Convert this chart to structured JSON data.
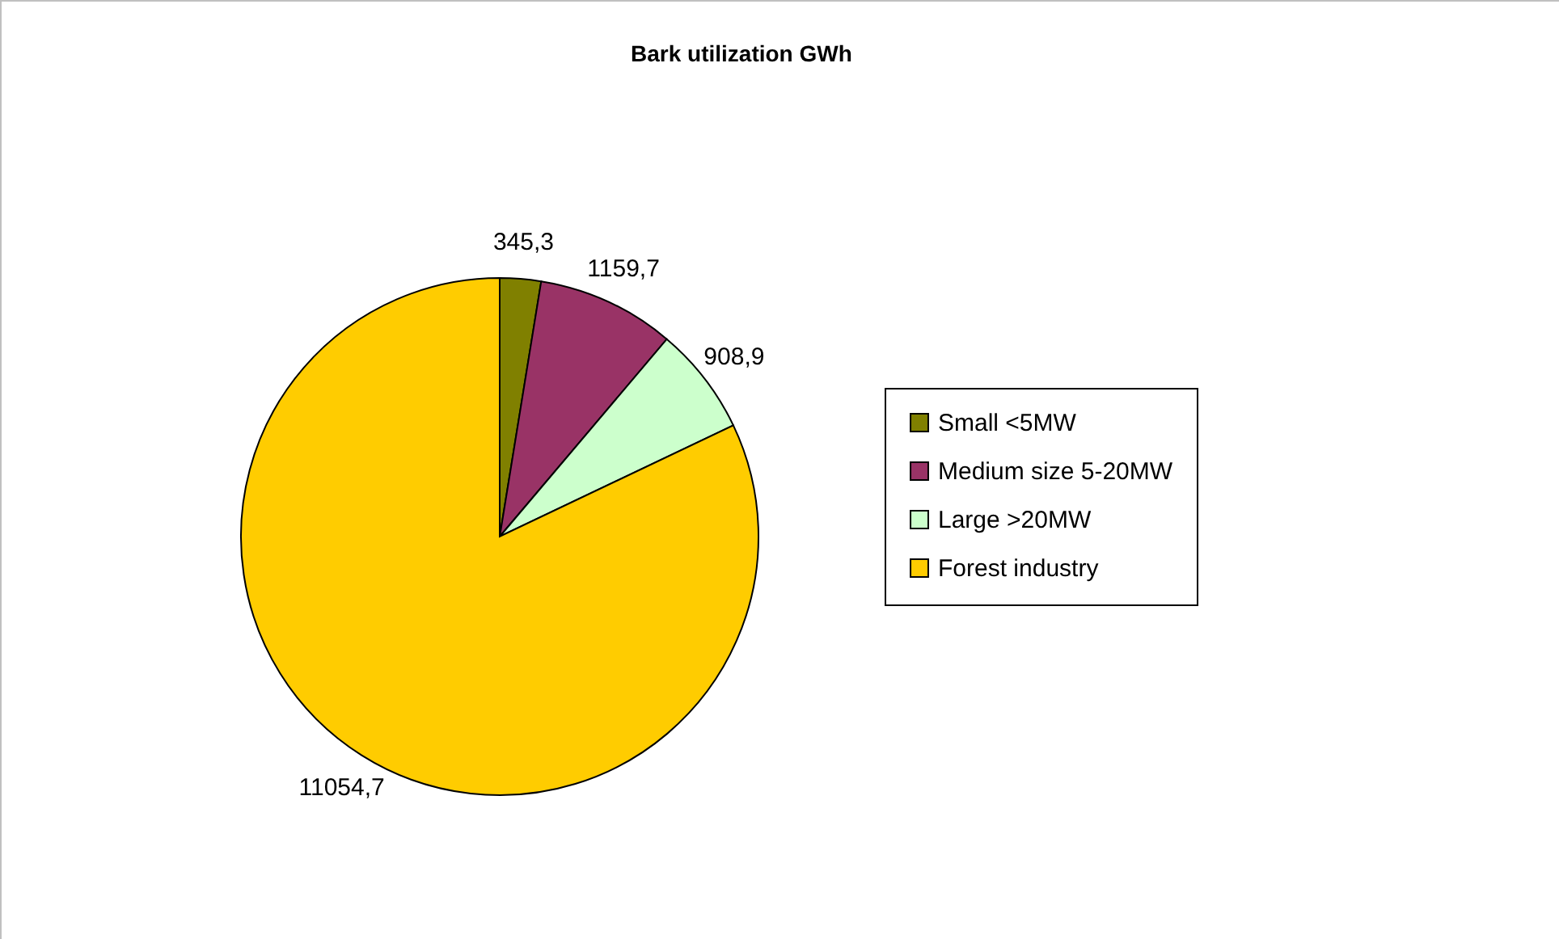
{
  "chart_data": {
    "type": "pie",
    "title": "Bark utilization GWh",
    "categories": [
      "Small <5MW",
      "Medium size 5-20MW",
      "Large >20MW",
      "Forest industry"
    ],
    "values": [
      345.3,
      1159.7,
      908.9,
      11054.7
    ],
    "value_labels": [
      "345,3",
      "1159,7",
      "908,9",
      "11054,7"
    ],
    "colors": [
      "#808000",
      "#993366",
      "#ccffcc",
      "#ffcc00"
    ],
    "legend": "right"
  }
}
